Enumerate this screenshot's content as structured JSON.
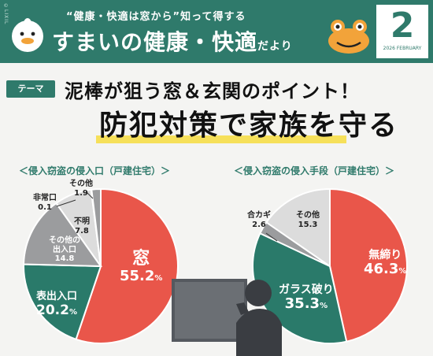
{
  "header": {
    "brand": "©LIXIL",
    "tagline": "“健康・快適は窓から”知って得する",
    "title": "すまいの健康・快適",
    "title_suffix": "だより",
    "issue_number": "2",
    "issue_date": "2026 FEBRUARY"
  },
  "theme": {
    "badge": "テーマ",
    "headline_line1": "泥棒が狙う窓＆玄関のポイント！",
    "headline_line2": "防犯対策で家族を守る"
  },
  "colors": {
    "header_green": "#2f7a6b",
    "red": "#e9564a",
    "green": "#2a7a6a",
    "gray": "#9b9c9e",
    "light_gray": "#dcdcdc",
    "highlight": "#f6e05a"
  },
  "chart_data": [
    {
      "type": "pie",
      "title": "＜侵入窃盗の侵入口（戸建住宅）＞",
      "unit": "%",
      "slices": [
        {
          "label": "窓",
          "value": 55.2,
          "value_text": "55.2",
          "color": "#e9564a"
        },
        {
          "label": "表出入口",
          "value": 20.2,
          "value_text": "20.2",
          "color": "#2a7a6a"
        },
        {
          "label": "その他の出入口",
          "value": 14.8,
          "value_text": "14.8",
          "color": "#9b9c9e"
        },
        {
          "label": "不明",
          "value": 7.8,
          "value_text": "7.8",
          "color": "#dcdcdc"
        },
        {
          "label": "非常口",
          "value": 0.1,
          "value_text": "0.1",
          "color": "#9b9c9e"
        },
        {
          "label": "その他",
          "value": 1.9,
          "value_text": "1.9",
          "color": "#9b9c9e"
        }
      ]
    },
    {
      "type": "pie",
      "title": "＜侵入窃盗の侵入手段（戸建住宅）＞",
      "unit": "%",
      "slices": [
        {
          "label": "無締り",
          "value": 46.3,
          "value_text": "46.3",
          "color": "#e9564a"
        },
        {
          "label": "ガラス破り",
          "value": 35.3,
          "value_text": "35.3",
          "color": "#2a7a6a"
        },
        {
          "label": "合カギ",
          "value": 2.6,
          "value_text": "2.6",
          "color": "#9b9c9e"
        },
        {
          "label": "その他",
          "value": 15.3,
          "value_text": "15.3",
          "color": "#dcdcdc"
        }
      ]
    }
  ]
}
